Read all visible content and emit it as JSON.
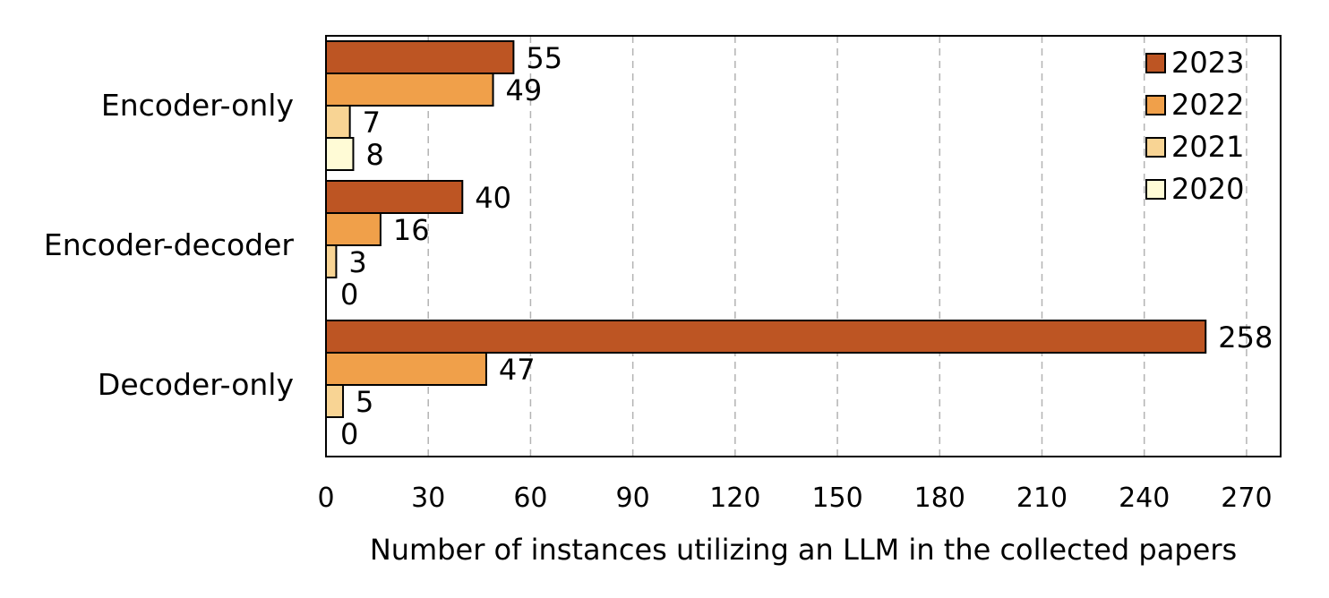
{
  "chart_data": {
    "type": "bar",
    "orientation": "horizontal",
    "categories": [
      "Encoder-only",
      "Encoder-decoder",
      "Decoder-only"
    ],
    "series": [
      {
        "name": "2023",
        "values": [
          55,
          40,
          258
        ],
        "color": "#bd5523"
      },
      {
        "name": "2022",
        "values": [
          49,
          16,
          47
        ],
        "color": "#f0a04a"
      },
      {
        "name": "2021",
        "values": [
          7,
          3,
          5
        ],
        "color": "#f8d494"
      },
      {
        "name": "2020",
        "values": [
          8,
          0,
          0
        ],
        "color": "#fffbd6"
      }
    ],
    "xlabel": "Number of instances utilizing an LLM in the collected papers",
    "ylabel": "",
    "xlim": [
      0,
      280
    ],
    "xticks": [
      0,
      30,
      60,
      90,
      120,
      150,
      180,
      210,
      240,
      270
    ],
    "grid": "vertical dashed",
    "legend_position": "top-right"
  }
}
